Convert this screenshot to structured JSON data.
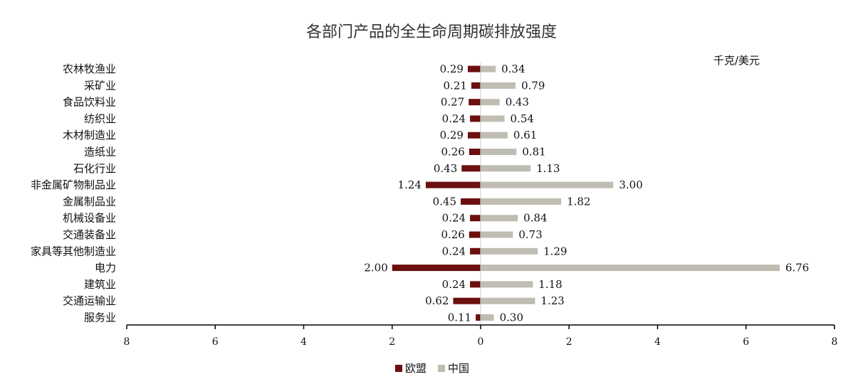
{
  "chart_data": {
    "type": "bar",
    "orientation": "horizontal",
    "title": "各部门产品的全生命周期碳排放强度",
    "unit": "千克/美元",
    "categories": [
      "农林牧渔业",
      "采矿业",
      "食品饮料业",
      "纺织业",
      "木材制造业",
      "造纸业",
      "石化行业",
      "非金属矿物制品业",
      "金属制品业",
      "机械设备业",
      "交通装备业",
      "家具等其他制造业",
      "电力",
      "建筑业",
      "交通运输业",
      "服务业"
    ],
    "series": [
      {
        "name": "欧盟",
        "color": "#6b0f0f",
        "direction": "left",
        "values": [
          0.29,
          0.21,
          0.27,
          0.24,
          0.29,
          0.26,
          0.43,
          1.24,
          0.45,
          0.24,
          0.26,
          0.24,
          2.0,
          0.24,
          0.62,
          0.11
        ],
        "labels": [
          "0.29",
          "0.21",
          "0.27",
          "0.24",
          "0.29",
          "0.26",
          "0.43",
          "1.24",
          "0.45",
          "0.24",
          "0.26",
          "0.24",
          "2.00",
          "0.24",
          "0.62",
          "0.11"
        ]
      },
      {
        "name": "中国",
        "color": "#bfbcb1",
        "direction": "right",
        "values": [
          0.34,
          0.79,
          0.43,
          0.54,
          0.61,
          0.81,
          1.13,
          3.0,
          1.82,
          0.84,
          0.73,
          1.29,
          6.76,
          1.18,
          1.23,
          0.3
        ],
        "labels": [
          "0.34",
          "0.79",
          "0.43",
          "0.54",
          "0.61",
          "0.81",
          "1.13",
          "3.00",
          "1.82",
          "0.84",
          "0.73",
          "1.29",
          "6.76",
          "1.18",
          "1.23",
          "0.30"
        ]
      }
    ],
    "xlim": [
      -8,
      8
    ],
    "x_ticks": [
      -8,
      -6,
      -4,
      -2,
      0,
      2,
      4,
      6,
      8
    ],
    "x_tick_labels": [
      "8",
      "6",
      "4",
      "2",
      "0",
      "2",
      "4",
      "6",
      "8"
    ],
    "legend_position": "bottom",
    "grid": false
  }
}
